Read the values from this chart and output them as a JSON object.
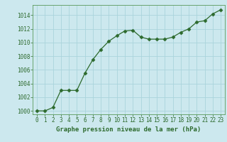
{
  "x": [
    0,
    1,
    2,
    3,
    4,
    5,
    6,
    7,
    8,
    9,
    10,
    11,
    12,
    13,
    14,
    15,
    16,
    17,
    18,
    19,
    20,
    21,
    22,
    23
  ],
  "y": [
    1000.0,
    1000.0,
    1000.5,
    1003.0,
    1003.0,
    1003.0,
    1005.5,
    1007.5,
    1009.0,
    1010.2,
    1011.0,
    1011.7,
    1011.8,
    1010.8,
    1010.5,
    1010.5,
    1010.5,
    1010.8,
    1011.5,
    1012.0,
    1013.0,
    1013.2,
    1014.2,
    1014.8
  ],
  "line_color": "#2d6a2d",
  "marker": "D",
  "marker_size": 2.5,
  "bg_color": "#cce8ee",
  "grid_color": "#aad4dc",
  "xlabel": "Graphe pression niveau de la mer (hPa)",
  "xlabel_color": "#2d6a2d",
  "tick_color": "#2d6a2d",
  "ylim": [
    999.5,
    1015.5
  ],
  "yticks": [
    1000,
    1002,
    1004,
    1006,
    1008,
    1010,
    1012,
    1014
  ],
  "xlim": [
    -0.5,
    23.5
  ],
  "xticks": [
    0,
    1,
    2,
    3,
    4,
    5,
    6,
    7,
    8,
    9,
    10,
    11,
    12,
    13,
    14,
    15,
    16,
    17,
    18,
    19,
    20,
    21,
    22,
    23
  ],
  "tick_fontsize": 5.5,
  "xlabel_fontsize": 6.5
}
